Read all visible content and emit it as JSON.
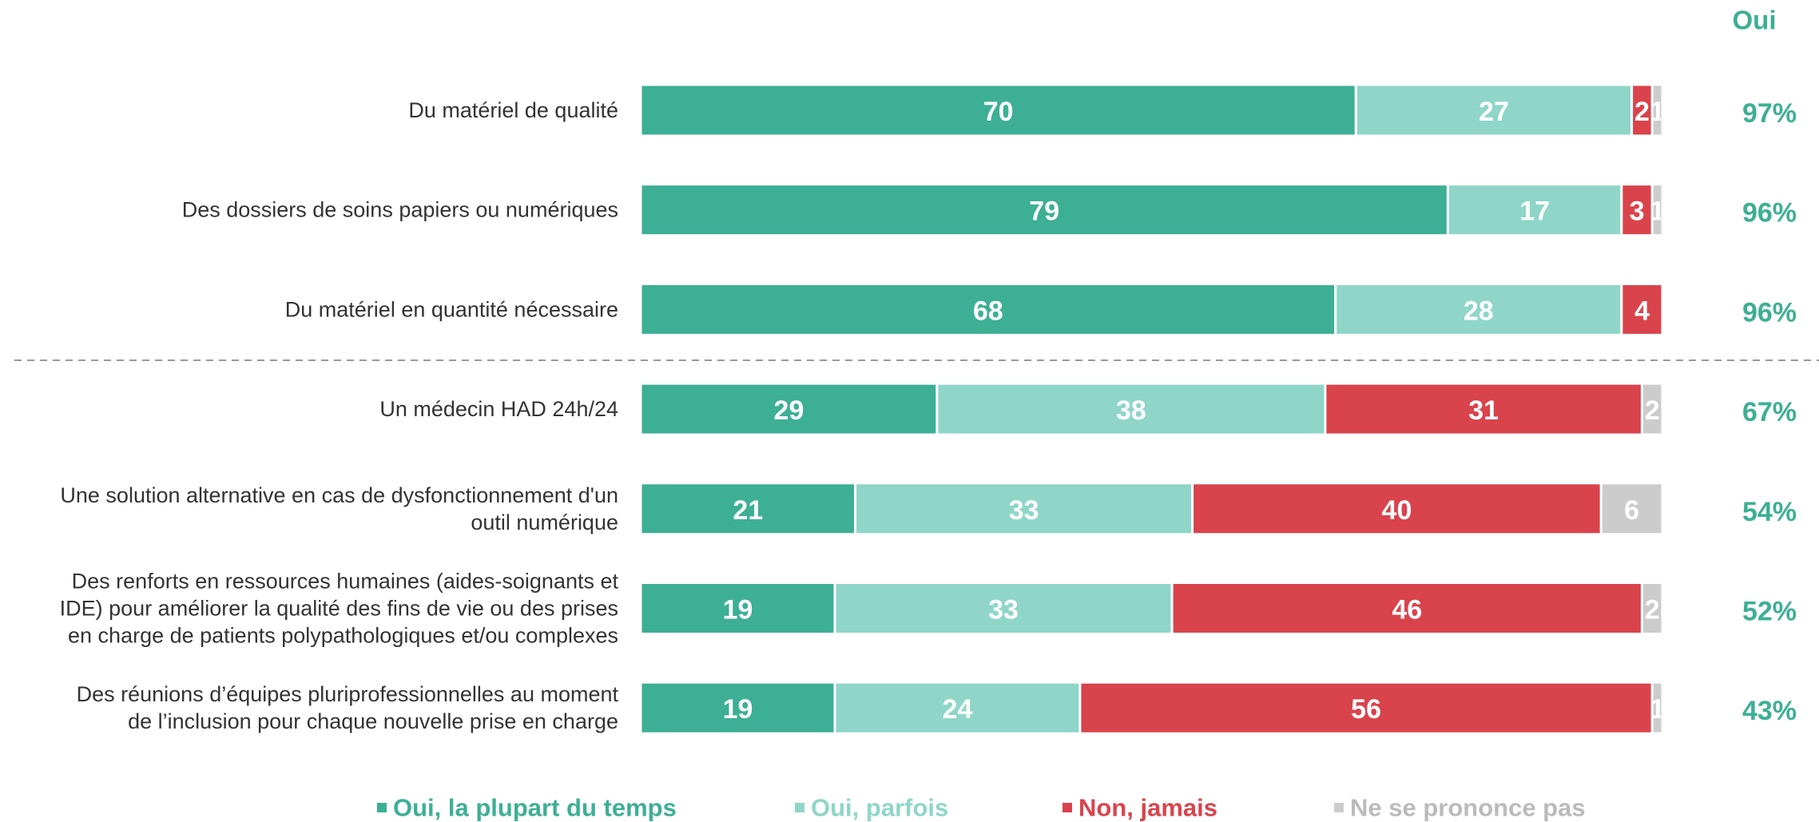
{
  "chart_data": {
    "type": "stacked-bar",
    "orientation": "horizontal",
    "categories": [
      "Du matériel de qualité",
      "Des dossiers de soins papiers ou numériques",
      "Du matériel en quantité nécessaire",
      "Un médecin HAD 24h/24",
      "Une solution alternative en cas de dysfonctionnement d'un\noutil numérique",
      "Des renforts en ressources humaines (aides-soignants et\nIDE) pour améliorer la qualité des fins de vie ou des prises\nen charge de patients polypathologiques et/ou complexes",
      "Des réunions d’équipes pluriprofessionnelles au moment\nde l’inclusion pour chaque nouvelle prise en charge"
    ],
    "xlim": [
      0,
      100
    ],
    "series": [
      {
        "name": "Oui, la plupart du temps",
        "color": "#3daf94",
        "values": [
          70,
          79,
          68,
          29,
          21,
          19,
          19
        ]
      },
      {
        "name": "Oui, parfois",
        "color": "#8fd6c8",
        "values": [
          27,
          17,
          28,
          38,
          33,
          33,
          24
        ]
      },
      {
        "name": "Non, jamais",
        "color": "#d9434c",
        "values": [
          2,
          3,
          4,
          31,
          40,
          46,
          56
        ]
      },
      {
        "name": "Ne se prononce pas",
        "color": "#cccccc",
        "values": [
          1,
          1,
          null,
          2,
          6,
          2,
          1
        ]
      }
    ],
    "totals": {
      "title": "Oui",
      "color": "#3daf94",
      "values": [
        97,
        96,
        96,
        67,
        54,
        52,
        43
      ],
      "value_labels": [
        "97%",
        "96%",
        "96%",
        "67%",
        "54%",
        "52%",
        "43%"
      ]
    },
    "legend": "bottom"
  }
}
